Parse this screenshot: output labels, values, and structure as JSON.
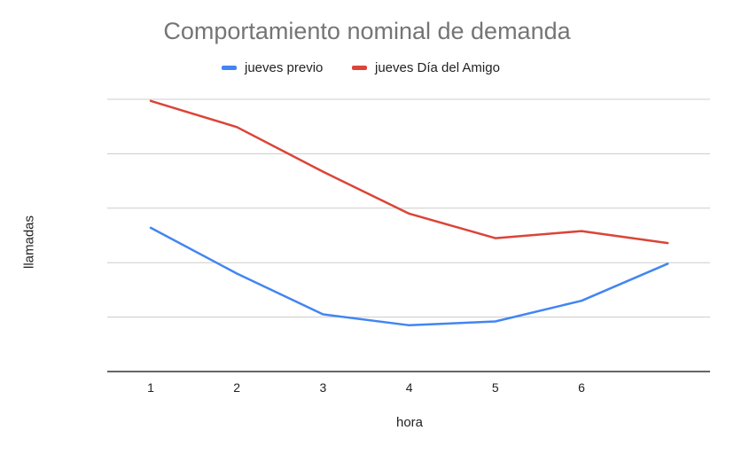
{
  "chart_data": {
    "type": "line",
    "title": "Comportamiento nominal de demanda",
    "xlabel": "hora",
    "ylabel": "llamadas",
    "x_tick_labels": [
      "1",
      "2",
      "3",
      "4",
      "5",
      "6"
    ],
    "x": [
      1,
      2,
      3,
      4,
      5,
      6,
      7
    ],
    "ylim": [
      0,
      5
    ],
    "y_tick_labels_visible": false,
    "grid": true,
    "legend_position": "top",
    "series": [
      {
        "name": "jueves previo",
        "color": "#4285F4",
        "values": [
          2.64,
          1.8,
          1.05,
          0.85,
          0.92,
          1.3,
          1.98
        ]
      },
      {
        "name": "jueves Día del Amigo",
        "color": "#DB4437",
        "values": [
          4.97,
          4.49,
          3.67,
          2.9,
          2.45,
          2.58,
          2.36
        ]
      }
    ]
  }
}
